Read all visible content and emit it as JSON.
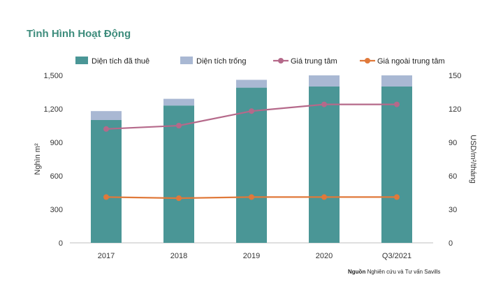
{
  "chart_data": {
    "type": "bar",
    "title": "Tình Hình Hoạt Động",
    "categories": [
      "2017",
      "2018",
      "2019",
      "2020",
      "Q3/2021"
    ],
    "series": [
      {
        "name": "Diện tích đã thuê",
        "kind": "stacked-bar",
        "axis": "left",
        "color": "#4a9696",
        "values": [
          1100,
          1230,
          1390,
          1400,
          1400
        ]
      },
      {
        "name": "Diện tích trống",
        "kind": "stacked-bar",
        "axis": "left",
        "color": "#a9b8d3",
        "values": [
          80,
          60,
          70,
          100,
          100
        ]
      },
      {
        "name": "Giá trung tâm",
        "kind": "line",
        "axis": "right",
        "color": "#b5698a",
        "values": [
          102,
          105,
          118,
          124,
          124
        ]
      },
      {
        "name": "Giá ngoài trung tâm",
        "kind": "line",
        "axis": "right",
        "color": "#e0793a",
        "values": [
          41,
          40,
          41,
          41,
          41
        ]
      }
    ],
    "ylabel_left": "Nghìn m²",
    "ylabel_right": "USD/m²/tháng",
    "ylim_left": [
      0,
      1500
    ],
    "ylim_right": [
      0,
      150
    ],
    "yticks_left": [
      "0",
      "300",
      "600",
      "900",
      "1,200",
      "1,500"
    ],
    "yticks_right": [
      "0",
      "30",
      "60",
      "90",
      "120",
      "150"
    ],
    "grid": false,
    "legend": "top"
  },
  "source": {
    "label": "Nguồn",
    "text": "Nghiên cứu và Tư vấn Savills"
  }
}
